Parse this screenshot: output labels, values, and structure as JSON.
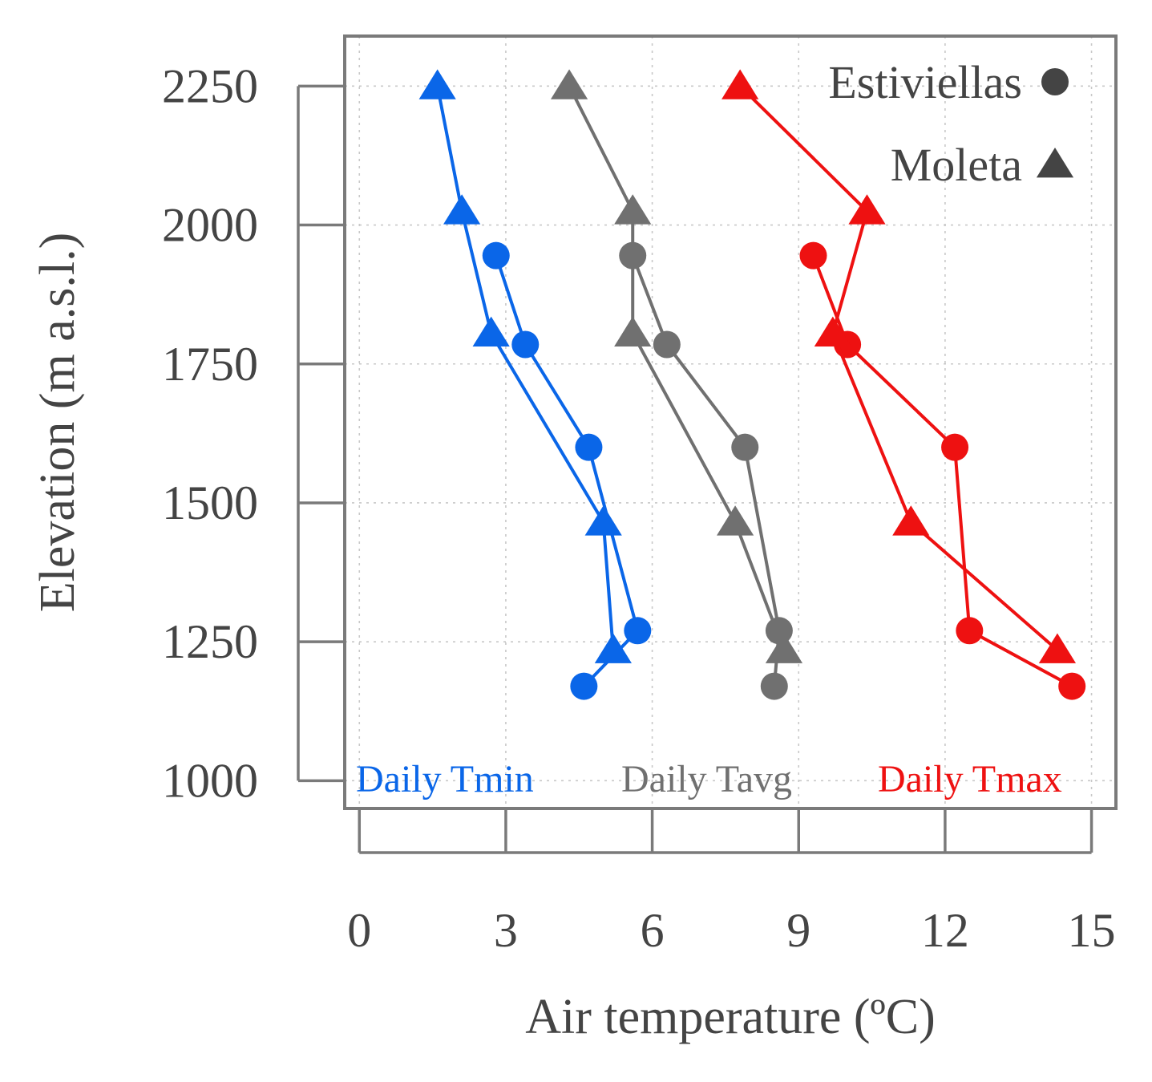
{
  "chart_data": {
    "type": "line",
    "xlabel": "Air temperature (ºC)",
    "ylabel": "Elevation (m a.s.l.)",
    "xlim": [
      -0.3,
      15.5
    ],
    "ylim": [
      950,
      2340
    ],
    "xticks": [
      0,
      3,
      6,
      9,
      12,
      15
    ],
    "yticks": [
      1000,
      1250,
      1500,
      1750,
      2000,
      2250
    ],
    "grid": true,
    "legend": {
      "position": "top-right",
      "entries": [
        {
          "label": "Estiviellas",
          "marker": "circle"
        },
        {
          "label": "Moleta",
          "marker": "triangle"
        }
      ]
    },
    "series": [
      {
        "name": "Daily Tmin",
        "site": "Estiviellas",
        "marker": "circle",
        "color": "#0a66e8",
        "x": [
          2.8,
          3.4,
          4.7,
          5.7,
          4.6
        ],
        "y": [
          1945,
          1785,
          1600,
          1270,
          1170
        ]
      },
      {
        "name": "Daily Tmin",
        "site": "Moleta",
        "marker": "triangle",
        "color": "#0a66e8",
        "x": [
          1.6,
          2.1,
          2.7,
          5.0,
          5.2
        ],
        "y": [
          2250,
          2025,
          1805,
          1465,
          1235
        ]
      },
      {
        "name": "Daily Tavg",
        "site": "Estiviellas",
        "marker": "circle",
        "color": "#707070",
        "x": [
          5.6,
          6.3,
          7.9,
          8.6,
          8.5
        ],
        "y": [
          1945,
          1785,
          1600,
          1270,
          1170
        ]
      },
      {
        "name": "Daily Tavg",
        "site": "Moleta",
        "marker": "triangle",
        "color": "#707070",
        "x": [
          4.3,
          5.6,
          5.6,
          7.7,
          8.7
        ],
        "y": [
          2250,
          2025,
          1805,
          1465,
          1235
        ]
      },
      {
        "name": "Daily Tmax",
        "site": "Estiviellas",
        "marker": "circle",
        "color": "#ee1111",
        "x": [
          9.3,
          10.0,
          12.2,
          12.5,
          14.6
        ],
        "y": [
          1945,
          1785,
          1600,
          1270,
          1170
        ]
      },
      {
        "name": "Daily Tmax",
        "site": "Moleta",
        "marker": "triangle",
        "color": "#ee1111",
        "x": [
          7.8,
          10.4,
          9.7,
          11.3,
          14.3
        ],
        "y": [
          2250,
          2025,
          1805,
          1465,
          1235
        ]
      }
    ],
    "annotations": [
      {
        "text": "Daily Tmin",
        "color": "#0a66e8"
      },
      {
        "text": "Daily Tavg",
        "color": "#707070"
      },
      {
        "text": "Daily Tmax",
        "color": "#ee1111"
      }
    ]
  }
}
